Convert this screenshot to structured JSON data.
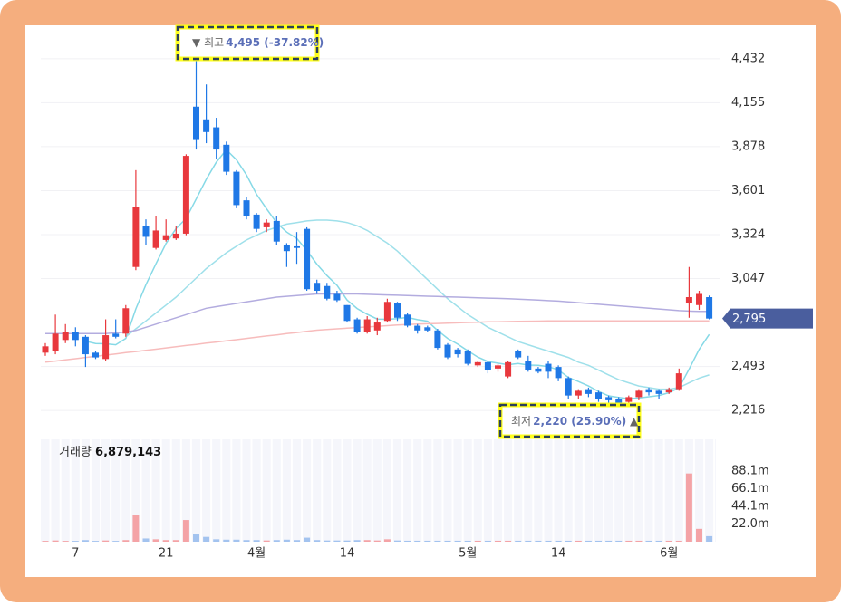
{
  "chart_data": {
    "type": "candlestick",
    "categories": [
      null,
      null,
      null,
      "7",
      null,
      null,
      null,
      null,
      null,
      null,
      null,
      null,
      "21",
      null,
      null,
      null,
      null,
      null,
      null,
      null,
      null,
      "4월",
      null,
      null,
      null,
      null,
      null,
      null,
      null,
      null,
      "14",
      null,
      null,
      null,
      null,
      null,
      null,
      null,
      null,
      null,
      null,
      null,
      "5월",
      null,
      null,
      null,
      null,
      null,
      null,
      null,
      null,
      "14",
      null,
      null,
      null,
      null,
      null,
      null,
      null,
      null,
      null,
      null,
      "6월",
      null,
      null,
      null,
      null
    ],
    "open": [
      2580,
      2590,
      2660,
      2710,
      2680,
      2580,
      2540,
      2700,
      2700,
      3120,
      3380,
      3240,
      3290,
      3300,
      3330,
      4130,
      4050,
      4000,
      3890,
      3720,
      3540,
      3450,
      3370,
      3410,
      3260,
      3250,
      3360,
      3020,
      3000,
      2950,
      2880,
      2790,
      2710,
      2720,
      2780,
      2890,
      2820,
      2750,
      2740,
      2720,
      2630,
      2600,
      2590,
      2500,
      2520,
      2480,
      2430,
      2590,
      2530,
      2480,
      2510,
      2490,
      2420,
      2310,
      2350,
      2330,
      2300,
      2290,
      2270,
      2300,
      2350,
      2340,
      2330,
      2350,
      2890,
      2880,
      2930
    ],
    "high": [
      2640,
      2820,
      2760,
      2740,
      2690,
      2590,
      2790,
      2790,
      2880,
      3730,
      3420,
      3440,
      3420,
      3380,
      3830,
      4495,
      4270,
      4060,
      3910,
      3730,
      3560,
      3460,
      3420,
      3440,
      3270,
      3340,
      3370,
      3040,
      3020,
      2970,
      2880,
      2800,
      2810,
      2800,
      2920,
      2900,
      2830,
      2760,
      2750,
      2730,
      2640,
      2610,
      2600,
      2530,
      2530,
      2510,
      2530,
      2600,
      2560,
      2490,
      2530,
      2500,
      2430,
      2350,
      2360,
      2340,
      2310,
      2300,
      2310,
      2350,
      2360,
      2350,
      2360,
      2480,
      3120,
      2970,
      2940
    ],
    "low": [
      2560,
      2570,
      2640,
      2620,
      2490,
      2540,
      2530,
      2670,
      2680,
      3100,
      3260,
      3230,
      3280,
      3290,
      3320,
      3860,
      3900,
      3800,
      3700,
      3490,
      3420,
      3340,
      3340,
      3260,
      3120,
      3140,
      2970,
      2950,
      2910,
      2900,
      2770,
      2700,
      2700,
      2690,
      2770,
      2780,
      2740,
      2700,
      2710,
      2600,
      2540,
      2550,
      2500,
      2490,
      2450,
      2460,
      2420,
      2540,
      2460,
      2450,
      2420,
      2400,
      2290,
      2290,
      2300,
      2270,
      2260,
      2240,
      2220,
      2280,
      2310,
      2290,
      2320,
      2340,
      2800,
      2850,
      2790
    ],
    "close": [
      2620,
      2700,
      2710,
      2660,
      2570,
      2550,
      2690,
      2680,
      2860,
      3500,
      3310,
      3350,
      3320,
      3330,
      3820,
      3920,
      3970,
      3860,
      3720,
      3510,
      3440,
      3360,
      3400,
      3280,
      3220,
      3240,
      2980,
      2970,
      2920,
      2910,
      2780,
      2710,
      2790,
      2770,
      2900,
      2800,
      2750,
      2720,
      2720,
      2610,
      2550,
      2570,
      2510,
      2520,
      2470,
      2500,
      2520,
      2550,
      2470,
      2460,
      2460,
      2420,
      2310,
      2340,
      2320,
      2290,
      2280,
      2260,
      2300,
      2340,
      2330,
      2320,
      2350,
      2450,
      2930,
      2950,
      2795
    ],
    "up_color": "#e8383d",
    "down_color": "#1f78e6",
    "series": [
      {
        "color": "#86d9e6",
        "values": [
          null,
          null,
          null,
          null,
          2652,
          2638,
          2636,
          2630,
          2670,
          2856,
          3008,
          3140,
          3268,
          3362,
          3426,
          3548,
          3672,
          3780,
          3858,
          3796,
          3700,
          3578,
          3486,
          3398,
          3340,
          3300,
          3224,
          3138,
          3066,
          3004,
          2912,
          2858,
          2822,
          2792,
          2790,
          2794,
          2802,
          2788,
          2778,
          2720,
          2670,
          2634,
          2592,
          2552,
          2524,
          2514,
          2504,
          2512,
          2502,
          2500,
          2492,
          2472,
          2424,
          2398,
          2370,
          2336,
          2308,
          2298,
          2290,
          2294,
          2302,
          2310,
          2328,
          2358,
          2476,
          2600,
          2695
        ]
      },
      {
        "color": "#9fe0ea",
        "values": [
          null,
          null,
          null,
          null,
          null,
          null,
          null,
          null,
          2680,
          2730,
          2780,
          2830,
          2880,
          2930,
          2990,
          3050,
          3110,
          3160,
          3210,
          3250,
          3290,
          3320,
          3350,
          3370,
          3390,
          3400,
          3410,
          3415,
          3415,
          3410,
          3400,
          3380,
          3350,
          3310,
          3270,
          3220,
          3160,
          3100,
          3040,
          2980,
          2920,
          2870,
          2820,
          2780,
          2740,
          2710,
          2680,
          2650,
          2630,
          2610,
          2590,
          2570,
          2550,
          2520,
          2500,
          2470,
          2440,
          2410,
          2390,
          2370,
          2360,
          2350,
          2350,
          2360,
          2390,
          2420,
          2440
        ]
      },
      {
        "color": "#b3acdf",
        "values": [
          2700,
          2700,
          2700,
          2700,
          2700,
          2700,
          2700,
          2705,
          2710,
          2720,
          2740,
          2760,
          2780,
          2800,
          2820,
          2840,
          2860,
          2870,
          2880,
          2890,
          2900,
          2910,
          2920,
          2930,
          2935,
          2940,
          2945,
          2950,
          2950,
          2950,
          2950,
          2950,
          2948,
          2946,
          2944,
          2942,
          2940,
          2938,
          2936,
          2934,
          2932,
          2930,
          2928,
          2926,
          2924,
          2922,
          2920,
          2917,
          2914,
          2911,
          2908,
          2905,
          2900,
          2895,
          2890,
          2885,
          2880,
          2875,
          2870,
          2865,
          2860,
          2855,
          2850,
          2845,
          2842,
          2840,
          2840
        ]
      },
      {
        "color": "#f7bcbc",
        "values": [
          2520,
          2527,
          2535,
          2542,
          2550,
          2557,
          2565,
          2572,
          2580,
          2587,
          2595,
          2602,
          2610,
          2617,
          2625,
          2632,
          2640,
          2647,
          2655,
          2662,
          2670,
          2677,
          2685,
          2692,
          2700,
          2707,
          2715,
          2722,
          2726,
          2730,
          2734,
          2738,
          2742,
          2746,
          2750,
          2754,
          2757,
          2760,
          2762,
          2764,
          2766,
          2768,
          2770,
          2772,
          2774,
          2775,
          2776,
          2777,
          2778,
          2779,
          2780,
          2780,
          2780,
          2780,
          2780,
          2780,
          2780,
          2780,
          2780,
          2780,
          2780,
          2780,
          2780,
          2780,
          2780,
          2780,
          2780
        ]
      }
    ],
    "ylim": [
      2091,
      4631
    ],
    "yticks": [
      {
        "value": 4432,
        "label": "4,432"
      },
      {
        "value": 4155,
        "label": "4,155"
      },
      {
        "value": 3878,
        "label": "3,878"
      },
      {
        "value": 3601,
        "label": "3,601"
      },
      {
        "value": 3324,
        "label": "3,324"
      },
      {
        "value": 3047,
        "label": "3,047"
      },
      {
        "value": 2493,
        "label": "2,493"
      },
      {
        "value": 2216,
        "label": "2,216"
      }
    ],
    "grid": true,
    "last_price_label": "2,795",
    "annotations": [
      {
        "arrow": "▼",
        "label": "최고",
        "text": "4,495 (-37.82%)"
      },
      {
        "label": "최저",
        "text": "2,220 (25.90%)",
        "arrow": "▲"
      }
    ],
    "volume": {
      "title": "거래량",
      "latest": "6,879,143",
      "up_color": "#f4a3a6",
      "down_color": "#a3c3ef",
      "values": [
        1,
        1.5,
        1,
        1,
        2,
        1,
        1.5,
        1,
        2,
        33,
        4,
        3,
        2,
        2,
        27,
        9,
        6,
        3,
        2.5,
        2.5,
        2,
        2,
        1.5,
        2,
        2.5,
        2,
        5,
        2,
        1.5,
        1.5,
        1.5,
        2,
        2,
        1.5,
        3,
        1.5,
        1.2,
        1.2,
        1.2,
        1.2,
        1.2,
        1.2,
        1.2,
        1.2,
        1.2,
        1.2,
        1.2,
        1.2,
        1.2,
        1.2,
        1.2,
        1.2,
        1.2,
        1.2,
        1.2,
        1.2,
        1.2,
        1.2,
        1.2,
        1.2,
        1.2,
        1.2,
        1.2,
        1.2,
        85,
        16,
        6.879143
      ],
      "ylim": [
        0,
        127.5
      ],
      "yticks": [
        {
          "value": 88.1,
          "label": "88.1m"
        },
        {
          "value": 66.1,
          "label": "66.1m"
        },
        {
          "value": 44.1,
          "label": "44.1m"
        },
        {
          "value": 22.0,
          "label": "22.0m"
        }
      ]
    }
  }
}
